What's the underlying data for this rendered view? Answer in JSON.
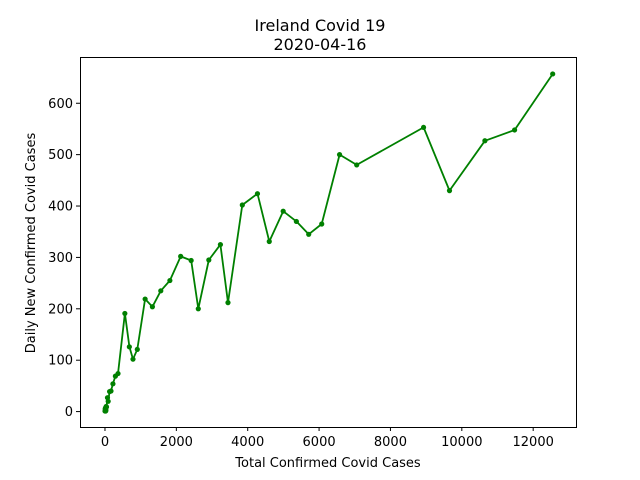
{
  "chart_data": {
    "type": "line",
    "title": "Ireland Covid 19",
    "subtitle": "2020-04-16",
    "xlabel": "Total Confirmed Covid Cases",
    "ylabel": "Daily New Confirmed Covid Cases",
    "xlim": [
      -700,
      13200
    ],
    "ylim": [
      -30,
      690
    ],
    "xticks": [
      0,
      2000,
      4000,
      6000,
      8000,
      10000,
      12000
    ],
    "yticks": [
      0,
      100,
      200,
      300,
      400,
      500,
      600
    ],
    "grid": false,
    "series": [
      {
        "color": "#008000",
        "marker": "dot",
        "x": [
          1,
          6,
          13,
          18,
          19,
          21,
          24,
          34,
          43,
          70,
          90,
          129,
          169,
          223,
          292,
          366,
          557,
          683,
          785,
          906,
          1125,
          1329,
          1564,
          1819,
          2121,
          2415,
          2615,
          2910,
          3235,
          3447,
          3849,
          4273,
          4604,
          4994,
          5364,
          5709,
          6074,
          6574,
          7054,
          8928,
          9655,
          10647,
          11479,
          12547
        ],
        "y": [
          1,
          5,
          7,
          5,
          1,
          2,
          3,
          10,
          9,
          27,
          20,
          39,
          40,
          54,
          69,
          74,
          191,
          126,
          102,
          121,
          219,
          204,
          235,
          255,
          302,
          294,
          200,
          295,
          325,
          212,
          402,
          424,
          331,
          390,
          370,
          345,
          365,
          500,
          480,
          553,
          430,
          527,
          548,
          657
        ]
      }
    ]
  }
}
